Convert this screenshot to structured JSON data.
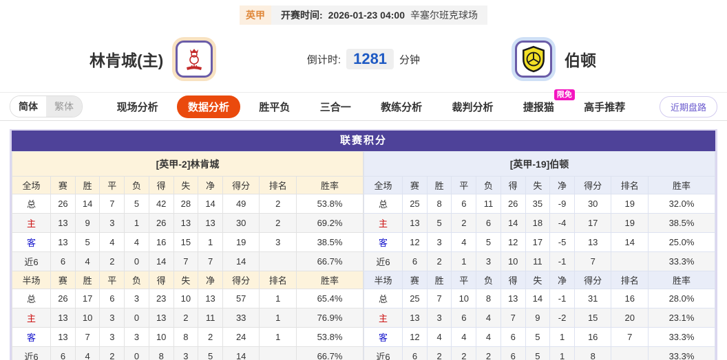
{
  "meta": {
    "league": "英甲",
    "kickoff_label": "开赛时间:",
    "kickoff_time": "2026-01-23 04:00",
    "venue": "辛塞尔班克球场"
  },
  "teams": {
    "home": {
      "name": "林肯城(主)",
      "logo": "lincoln-red-imp-crest"
    },
    "away": {
      "name": "伯顿",
      "logo": "burton-yellow-shield-crest"
    }
  },
  "countdown": {
    "label": "倒计时:",
    "value": "1281",
    "unit": "分钟"
  },
  "nav": {
    "lang": [
      "简体",
      "繁体"
    ],
    "tabs": [
      {
        "label": "现场分析",
        "active": false
      },
      {
        "label": "数据分析",
        "active": true
      },
      {
        "label": "胜平负",
        "active": false
      },
      {
        "label": "三合一",
        "active": false
      },
      {
        "label": "教练分析",
        "active": false
      },
      {
        "label": "裁判分析",
        "active": false
      },
      {
        "label": "捷报猫",
        "active": false,
        "badge": "限免"
      },
      {
        "label": "高手推荐",
        "active": false
      }
    ],
    "recent_button": "近期盘路"
  },
  "standings": {
    "title": "联赛积分",
    "full_corner": "全场",
    "half_corner": "半场",
    "columns": [
      "赛",
      "胜",
      "平",
      "负",
      "得",
      "失",
      "净",
      "得分",
      "排名",
      "胜率"
    ],
    "panels": [
      {
        "side": "home",
        "team_header": "[英甲-2]林肯城",
        "full_rows": [
          {
            "label": "总",
            "cells": [
              "26",
              "14",
              "7",
              "5",
              "42",
              "28",
              "14",
              "49",
              "2",
              "53.8%"
            ]
          },
          {
            "label": "主",
            "cells": [
              "13",
              "9",
              "3",
              "1",
              "26",
              "13",
              "13",
              "30",
              "2",
              "69.2%"
            ]
          },
          {
            "label": "客",
            "cells": [
              "13",
              "5",
              "4",
              "4",
              "16",
              "15",
              "1",
              "19",
              "3",
              "38.5%"
            ]
          },
          {
            "label": "近6",
            "cells": [
              "6",
              "4",
              "2",
              "0",
              "14",
              "7",
              "7",
              "14",
              "",
              "66.7%"
            ]
          }
        ],
        "half_rows": [
          {
            "label": "总",
            "cells": [
              "26",
              "17",
              "6",
              "3",
              "23",
              "10",
              "13",
              "57",
              "1",
              "65.4%"
            ]
          },
          {
            "label": "主",
            "cells": [
              "13",
              "10",
              "3",
              "0",
              "13",
              "2",
              "11",
              "33",
              "1",
              "76.9%"
            ]
          },
          {
            "label": "客",
            "cells": [
              "13",
              "7",
              "3",
              "3",
              "10",
              "8",
              "2",
              "24",
              "1",
              "53.8%"
            ]
          },
          {
            "label": "近6",
            "cells": [
              "6",
              "4",
              "2",
              "0",
              "8",
              "3",
              "5",
              "14",
              "",
              "66.7%"
            ]
          }
        ]
      },
      {
        "side": "away",
        "team_header": "[英甲-19]伯顿",
        "full_rows": [
          {
            "label": "总",
            "cells": [
              "25",
              "8",
              "6",
              "11",
              "26",
              "35",
              "-9",
              "30",
              "19",
              "32.0%"
            ]
          },
          {
            "label": "主",
            "cells": [
              "13",
              "5",
              "2",
              "6",
              "14",
              "18",
              "-4",
              "17",
              "19",
              "38.5%"
            ]
          },
          {
            "label": "客",
            "cells": [
              "12",
              "3",
              "4",
              "5",
              "12",
              "17",
              "-5",
              "13",
              "14",
              "25.0%"
            ]
          },
          {
            "label": "近6",
            "cells": [
              "6",
              "2",
              "1",
              "3",
              "10",
              "11",
              "-1",
              "7",
              "",
              "33.3%"
            ]
          }
        ],
        "half_rows": [
          {
            "label": "总",
            "cells": [
              "25",
              "7",
              "10",
              "8",
              "13",
              "14",
              "-1",
              "31",
              "16",
              "28.0%"
            ]
          },
          {
            "label": "主",
            "cells": [
              "13",
              "3",
              "6",
              "4",
              "7",
              "9",
              "-2",
              "15",
              "20",
              "23.1%"
            ]
          },
          {
            "label": "客",
            "cells": [
              "12",
              "4",
              "4",
              "4",
              "6",
              "5",
              "1",
              "16",
              "7",
              "33.3%"
            ]
          },
          {
            "label": "近6",
            "cells": [
              "6",
              "2",
              "2",
              "2",
              "6",
              "5",
              "1",
              "8",
              "",
              "33.3%"
            ]
          }
        ]
      }
    ]
  },
  "colors": {
    "accent_orange": "#ea4a0d",
    "header_purple": "#4e4299",
    "home_panel_bg": "#fdf3dc",
    "away_panel_bg": "#e9edf8",
    "home_label_red": "#cc1111",
    "away_label_blue": "#1515cc",
    "badge_pink": "#f415c0",
    "button_purple": "#6a5ace",
    "countdown_blue": "#1d59c3",
    "league_badge_orange": "#e0883a"
  }
}
